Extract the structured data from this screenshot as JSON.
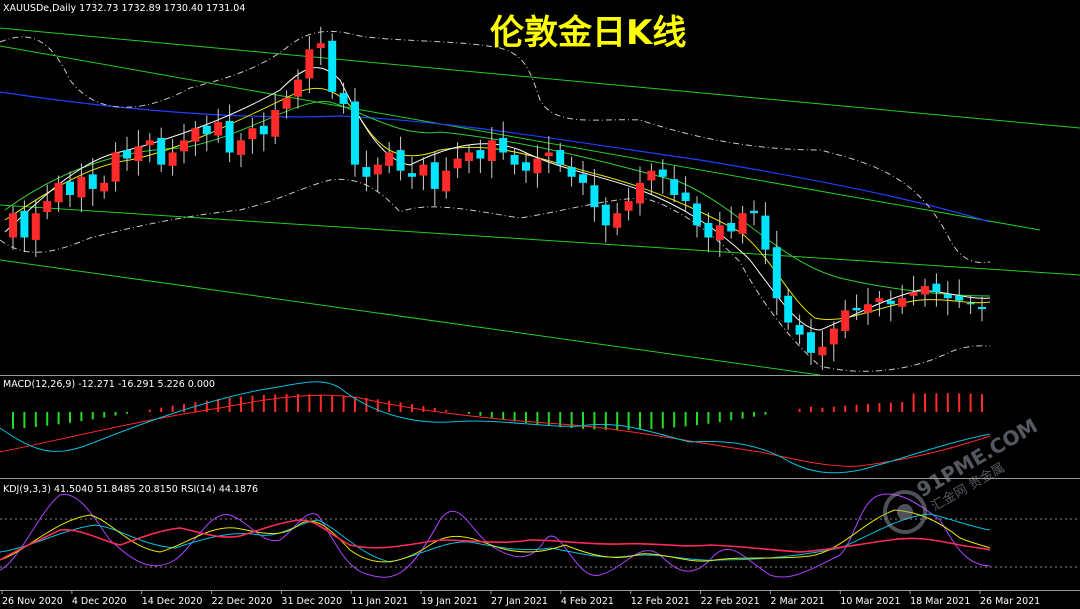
{
  "header": {
    "main_info": "XAUUSDe,Daily  1732.73 1732.89 1730.40 1731.04",
    "macd_info": "MACD(12,26,9) -12.271 -16.291 5.226 0.000",
    "kdj_info": "KDJ(9,3,3) 41.5040 51.8485 20.8150  RSI(14) 44.1876"
  },
  "title": "伦敦金日K线",
  "watermark": {
    "brand": "91PME.COM",
    "sub": "汇金网 贵金属"
  },
  "x_axis": {
    "labels": [
      "26 Nov 2020",
      "4 Dec 2020",
      "14 Dec 2020",
      "22 Dec 2020",
      "31 Dec 2020",
      "11 Jan 2021",
      "19 Jan 2021",
      "27 Jan 2021",
      "4 Feb 2021",
      "12 Feb 2021",
      "22 Feb 2021",
      "2 Mar 2021",
      "10 Mar 2021",
      "18 Mar 2021",
      "26 Mar 2021"
    ]
  },
  "colors": {
    "bull": "#ff2a2a",
    "bear": "#00e5ff",
    "wick": "#d0d0d0",
    "channel": "#22cc22",
    "ma_long": "#1f3fff",
    "ma_mid": "#33cc33",
    "ma_yellow": "#e6e600",
    "ma_white": "#ffffff",
    "bands": "#c8c8c8",
    "macd_hist_pos": "#ff2a2a",
    "macd_hist_neg": "#22dd22",
    "macd_signal": "#ff2a2a",
    "macd_line": "#00c0e0",
    "kdj_k": "#e6e600",
    "kdj_d": "#00c0e0",
    "kdj_j": "#b040ff",
    "rsi": "#ff2a5a"
  },
  "chart_data": {
    "type": "candlestick",
    "symbol": "XAUUSDe",
    "timeframe": "Daily",
    "last_bar": {
      "open": 1732.73,
      "high": 1732.89,
      "low": 1730.4,
      "close": 1731.04
    },
    "indicators": {
      "MACD(12,26,9)": [
        -12.271,
        -16.291,
        5.226,
        0.0
      ],
      "KDJ(9,3,3)": [
        41.504,
        51.8485,
        20.815
      ],
      "RSI(14)": 44.1876
    },
    "closes": [
      1810,
      1790,
      1810,
      1820,
      1835,
      1825,
      1840,
      1830,
      1835,
      1860,
      1855,
      1865,
      1870,
      1850,
      1860,
      1870,
      1880,
      1875,
      1885,
      1860,
      1870,
      1880,
      1875,
      1895,
      1905,
      1920,
      1945,
      1950,
      1910,
      1900,
      1850,
      1840,
      1850,
      1860,
      1845,
      1840,
      1850,
      1830,
      1845,
      1855,
      1860,
      1855,
      1870,
      1860,
      1850,
      1845,
      1855,
      1860,
      1850,
      1840,
      1835,
      1815,
      1800,
      1810,
      1820,
      1835,
      1845,
      1840,
      1825,
      1820,
      1800,
      1790,
      1800,
      1795,
      1810,
      1810,
      1780,
      1740,
      1720,
      1710,
      1695,
      1700,
      1715,
      1730,
      1730,
      1735,
      1740,
      1735,
      1740,
      1745,
      1750,
      1745,
      1740,
      1738,
      1735,
      1731
    ],
    "opens": [
      1790,
      1812,
      1788,
      1811,
      1819,
      1836,
      1823,
      1842,
      1828,
      1836,
      1862,
      1853,
      1866,
      1872,
      1849,
      1861,
      1869,
      1882,
      1874,
      1886,
      1858,
      1871,
      1882,
      1873,
      1896,
      1906,
      1921,
      1946,
      1952,
      1909,
      1902,
      1848,
      1842,
      1849,
      1862,
      1843,
      1841,
      1852,
      1828,
      1847,
      1853,
      1862,
      1853,
      1872,
      1858,
      1852,
      1843,
      1857,
      1862,
      1848,
      1842,
      1833,
      1817,
      1798,
      1812,
      1818,
      1837,
      1846,
      1838,
      1827,
      1818,
      1802,
      1788,
      1802,
      1793,
      1812,
      1808,
      1782,
      1742,
      1718,
      1712,
      1693,
      1702,
      1713,
      1732,
      1728,
      1737,
      1738,
      1733,
      1742,
      1743,
      1752,
      1743,
      1742,
      1736,
      1732.73
    ]
  }
}
